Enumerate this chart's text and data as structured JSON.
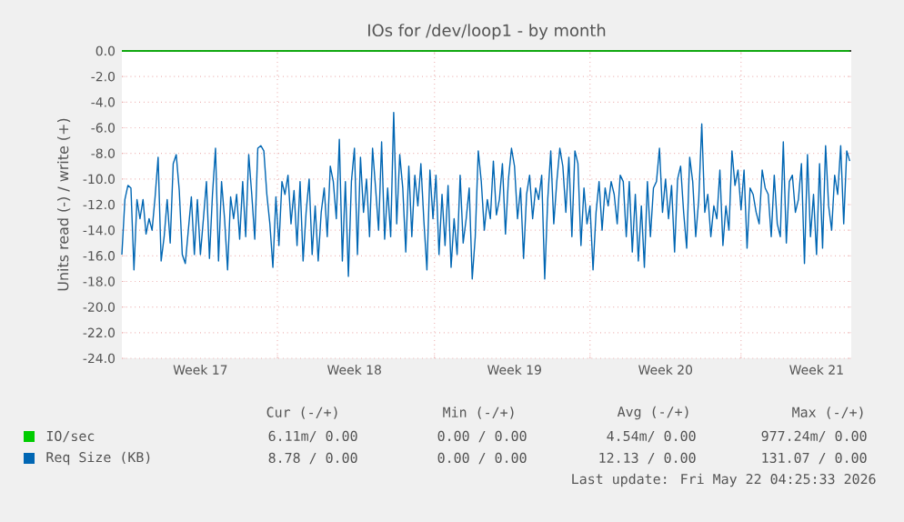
{
  "chart_data": {
    "type": "line",
    "title": "IOs for /dev/loop1 - by month",
    "ylabel": "Units read (-) / write (+)",
    "categories": [
      null,
      null,
      null,
      null,
      null,
      null,
      null,
      null,
      null,
      null,
      null,
      null,
      null,
      null,
      null,
      null,
      null,
      null,
      null,
      null,
      null,
      null,
      null,
      null,
      null,
      null,
      "Week 17",
      null,
      null,
      null,
      null,
      null,
      null,
      null,
      null,
      null,
      null,
      null,
      null,
      null,
      null,
      null,
      null,
      null,
      null,
      null,
      null,
      null,
      null,
      null,
      null,
      null,
      null,
      null,
      null,
      null,
      null,
      null,
      null,
      null,
      null,
      null,
      null,
      null,
      null,
      null,
      null,
      null,
      null,
      null,
      null,
      null,
      null,
      null,
      null,
      null,
      null,
      "Week 18",
      null,
      null,
      null,
      null,
      null,
      null,
      null,
      null,
      null,
      null,
      null,
      null,
      null,
      null,
      null,
      null,
      null,
      null,
      null,
      null,
      null,
      null,
      null,
      null,
      null,
      null,
      null,
      null,
      null,
      null,
      null,
      null,
      null,
      null,
      null,
      null,
      null,
      null,
      null,
      null,
      null,
      null,
      null,
      null,
      null,
      null,
      null,
      null,
      null,
      null,
      null,
      null,
      "Week 19",
      null,
      null,
      null,
      null,
      null,
      null,
      null,
      null,
      null,
      null,
      null,
      null,
      null,
      null,
      null,
      null,
      null,
      null,
      null,
      null,
      null,
      null,
      null,
      null,
      null,
      null,
      null,
      null,
      null,
      null,
      null,
      null,
      null,
      null,
      null,
      null,
      null,
      null,
      null,
      null,
      null,
      null,
      null,
      null,
      null,
      null,
      null,
      null,
      null,
      "Week 20",
      null,
      null,
      null,
      null,
      null,
      null,
      null,
      null,
      null,
      null,
      null,
      null,
      null,
      null,
      null,
      null,
      null,
      null,
      null,
      null,
      null,
      null,
      null,
      null,
      null,
      null,
      null,
      null,
      null,
      null,
      null,
      null,
      null,
      null,
      null,
      null,
      null,
      null,
      null,
      null,
      null,
      null,
      null,
      null,
      null,
      null,
      null,
      null,
      null,
      "Week 21",
      null,
      null,
      null,
      null,
      null,
      null,
      null,
      null,
      null,
      null,
      null
    ],
    "ylim": [
      -24,
      0
    ],
    "yticks": [
      {
        "value": -24,
        "label": "-24.0"
      },
      {
        "value": -22,
        "label": "-22.0"
      },
      {
        "value": -20,
        "label": "-20.0"
      },
      {
        "value": -18,
        "label": "-18.0"
      },
      {
        "value": -16,
        "label": "-16.0"
      },
      {
        "value": -14,
        "label": "-14.0"
      },
      {
        "value": -12,
        "label": "-12.0"
      },
      {
        "value": -10,
        "label": "-10.0"
      },
      {
        "value": -8,
        "label": "-8.0"
      },
      {
        "value": -6,
        "label": "-6.0"
      },
      {
        "value": -4,
        "label": "-4.0"
      },
      {
        "value": -2,
        "label": "-2.0"
      },
      {
        "value": 0,
        "label": "0.0"
      }
    ],
    "grid": true,
    "legend": "bottom",
    "ref_lines": [
      {
        "axis": "y",
        "value": 0,
        "color": "#000000"
      }
    ],
    "series": [
      {
        "name": "IO/sec",
        "color": "#00cc00",
        "values": [
          0,
          0,
          0,
          0,
          0,
          0,
          0,
          0,
          0,
          0,
          0,
          0,
          0,
          0,
          0,
          0,
          0,
          0,
          0,
          0,
          0,
          0,
          0,
          0,
          0,
          0,
          0,
          0,
          0,
          0,
          0,
          0,
          0,
          0,
          0,
          0,
          0,
          0,
          0,
          0,
          0,
          0,
          0,
          0,
          0,
          0,
          0,
          0,
          0,
          0,
          0,
          0,
          0,
          0,
          0,
          0,
          0,
          0,
          0,
          0,
          0,
          0,
          0,
          0,
          0,
          0,
          0,
          0,
          0,
          0,
          0,
          0,
          0,
          0,
          0,
          0,
          0,
          0,
          0,
          0,
          0,
          0,
          0,
          0,
          0,
          0,
          0,
          0,
          0,
          0,
          0,
          0,
          0,
          0,
          0,
          0,
          0,
          0,
          0,
          0,
          0,
          0,
          0,
          0,
          0,
          0,
          0,
          0,
          0,
          0,
          0,
          0,
          0,
          0,
          0,
          0,
          0,
          0,
          0,
          0,
          0,
          0,
          0,
          0,
          0,
          0,
          0,
          0,
          0,
          0,
          0,
          0,
          0,
          0,
          0,
          0,
          0,
          0,
          0,
          0,
          0,
          0,
          0,
          0,
          0,
          0,
          0,
          0,
          0,
          0,
          0,
          0,
          0,
          0,
          0,
          0,
          0,
          0,
          0,
          0,
          0,
          0,
          0,
          0,
          0,
          0,
          0,
          0,
          0,
          0,
          0,
          0,
          0,
          0,
          0,
          0,
          0,
          0,
          0,
          0,
          0,
          0,
          0,
          0,
          0,
          0,
          0,
          0,
          0,
          0,
          0,
          0,
          0,
          0,
          0,
          0,
          0,
          0,
          0,
          0,
          0,
          0,
          0,
          0,
          0,
          0,
          0,
          0,
          0,
          0,
          0,
          0,
          0,
          0,
          0,
          0,
          0,
          0,
          0,
          0,
          0,
          0,
          0,
          0,
          0,
          0,
          0,
          0,
          0,
          0,
          0,
          0,
          0,
          0,
          0,
          0,
          0,
          0,
          0,
          0,
          0,
          0
        ]
      },
      {
        "name": "Req Size (KB)",
        "color": "#0066b3",
        "values": [
          -15.9,
          -11.6,
          -10.5,
          -10.7,
          -17.1,
          -11.6,
          -13.1,
          -11.6,
          -14.3,
          -13.1,
          -14.0,
          -11.4,
          -8.3,
          -16.4,
          -14.5,
          -11.6,
          -15.0,
          -8.8,
          -8.1,
          -10.9,
          -15.9,
          -16.6,
          -14.0,
          -11.4,
          -15.9,
          -11.6,
          -15.9,
          -13.1,
          -10.2,
          -16.2,
          -11.2,
          -7.6,
          -16.4,
          -10.2,
          -13.1,
          -17.1,
          -11.4,
          -13.1,
          -11.2,
          -14.7,
          -10.2,
          -14.5,
          -8.1,
          -11.2,
          -14.7,
          -7.6,
          -7.4,
          -7.8,
          -11.2,
          -13.5,
          -16.9,
          -11.4,
          -15.2,
          -10.2,
          -11.2,
          -9.7,
          -13.5,
          -10.9,
          -15.2,
          -10.2,
          -16.4,
          -12.6,
          -10.0,
          -15.9,
          -12.1,
          -16.4,
          -12.6,
          -10.7,
          -14.5,
          -9.0,
          -10.2,
          -13.1,
          -6.9,
          -16.4,
          -10.2,
          -17.6,
          -10.2,
          -7.6,
          -15.9,
          -8.3,
          -12.6,
          -10.0,
          -14.5,
          -7.6,
          -10.7,
          -14.0,
          -7.1,
          -14.7,
          -10.7,
          -14.5,
          -4.8,
          -13.5,
          -8.1,
          -10.7,
          -15.7,
          -9.0,
          -14.5,
          -9.7,
          -12.1,
          -8.8,
          -13.3,
          -17.1,
          -9.3,
          -13.1,
          -9.7,
          -15.9,
          -11.2,
          -15.2,
          -10.5,
          -16.9,
          -13.1,
          -15.9,
          -9.7,
          -15.0,
          -13.1,
          -10.7,
          -17.8,
          -14.5,
          -7.8,
          -10.2,
          -14.0,
          -11.6,
          -13.1,
          -8.6,
          -12.8,
          -11.6,
          -8.8,
          -14.3,
          -10.0,
          -7.6,
          -9.0,
          -13.1,
          -10.7,
          -16.2,
          -11.2,
          -9.7,
          -13.1,
          -10.7,
          -11.6,
          -9.7,
          -17.8,
          -11.6,
          -7.8,
          -13.5,
          -10.2,
          -7.6,
          -9.0,
          -12.6,
          -8.3,
          -14.5,
          -7.8,
          -8.8,
          -15.2,
          -10.7,
          -13.5,
          -12.1,
          -17.1,
          -12.6,
          -10.2,
          -14.0,
          -10.7,
          -12.1,
          -10.2,
          -11.2,
          -13.5,
          -9.7,
          -10.2,
          -14.5,
          -10.2,
          -15.7,
          -11.2,
          -16.4,
          -12.1,
          -16.9,
          -10.2,
          -14.5,
          -10.7,
          -10.2,
          -7.6,
          -12.6,
          -10.0,
          -13.1,
          -10.5,
          -15.7,
          -10.0,
          -9.0,
          -12.6,
          -15.4,
          -8.3,
          -10.2,
          -14.5,
          -11.6,
          -5.7,
          -12.6,
          -11.2,
          -14.5,
          -12.1,
          -13.1,
          -9.3,
          -15.2,
          -12.1,
          -14.0,
          -7.8,
          -10.5,
          -9.3,
          -12.4,
          -9.3,
          -15.4,
          -10.7,
          -11.2,
          -12.6,
          -13.5,
          -9.3,
          -10.7,
          -11.2,
          -14.5,
          -9.7,
          -13.5,
          -14.5,
          -7.1,
          -15.0,
          -10.2,
          -9.7,
          -12.6,
          -11.6,
          -8.8,
          -16.6,
          -8.1,
          -14.5,
          -11.2,
          -15.9,
          -8.8,
          -15.4,
          -7.4,
          -12.1,
          -14.0,
          -9.7,
          -11.2,
          -7.4,
          -13.5,
          -7.8,
          -8.6
        ]
      }
    ],
    "annotations": [
      "Cur (-/+)",
      "Min (-/+)",
      "Avg (-/+)",
      "Max (-/+)",
      "6.11m/ 0.00",
      "0.00 / 0.00",
      "4.54m/ 0.00",
      "977.24m/ 0.00",
      "8.78 / 0.00",
      "0.00 / 0.00",
      "12.13 / 0.00",
      "131.07 / 0.00",
      "Last update: Fri May 22 04:25:33 2026"
    ]
  }
}
